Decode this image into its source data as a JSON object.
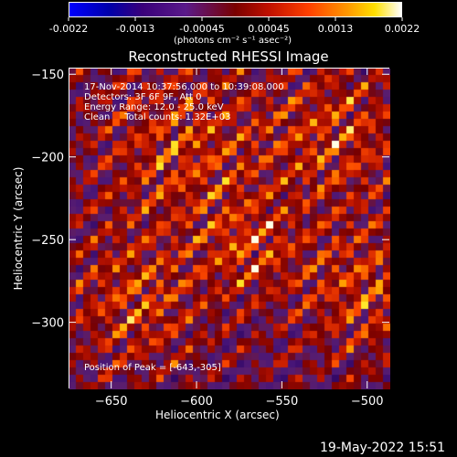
{
  "colorbar": {
    "ticks": [
      "-0.0022",
      "-0.0013",
      "-0.00045",
      "0.00045",
      "0.0013",
      "0.0022"
    ],
    "unit_label": "(photons cm⁻² s⁻¹ asec⁻²)"
  },
  "title": "Reconstructed RHESSI Image",
  "annotations": {
    "time_range": "17-Nov-2014 10:37:56.000 to 10:39:08.000",
    "detectors": "Detectors: 3F 6F 9F, Att 0",
    "energy": "Energy Range: 12.0 - 25.0 keV",
    "method": "Clean     Total counts: 1.32E+03",
    "peak": "Position of Peak = [-643,-305]"
  },
  "axes": {
    "xlabel": "Heliocentric X (arcsec)",
    "ylabel": "Heliocentric Y (arcsec)",
    "xticks": [
      "-650",
      "-600",
      "-550",
      "-500"
    ],
    "yticks": [
      "-150",
      "-200",
      "-250",
      "-300"
    ],
    "xlim": [
      -675,
      -487
    ],
    "ylim": [
      -340,
      -146
    ]
  },
  "footer_date": "19-May-2022 15:51",
  "colors": {
    "low": "#0000ff",
    "mid": "#7a0000",
    "high": "#ffffff"
  }
}
